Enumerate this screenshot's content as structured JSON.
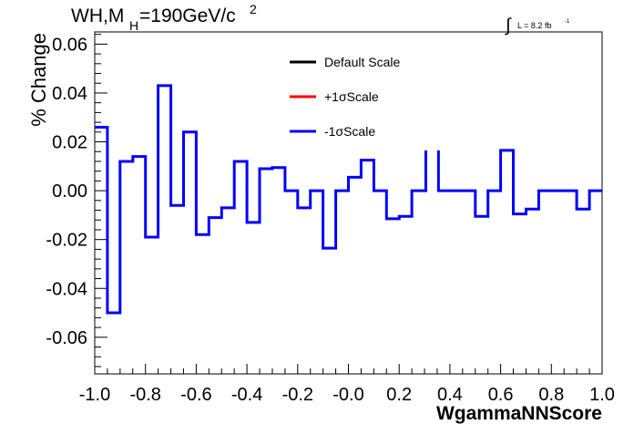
{
  "chart_data": {
    "type": "line",
    "title": {
      "prefix": "WH,M",
      "subscript": "H",
      "middle": "=190GeV/c",
      "superscript": "2"
    },
    "lumi": {
      "integral": "∫",
      "text": "L = 8.2 fb",
      "superscript": "-1"
    },
    "xlabel": "WgammaNNScore",
    "ylabel": "% Change",
    "xlim": [
      -1.0,
      1.0
    ],
    "ylim": [
      -0.075,
      0.065
    ],
    "x_ticks": [
      -1.0,
      -0.8,
      -0.6,
      -0.4,
      -0.2,
      0.0,
      0.2,
      0.4,
      0.6,
      0.8,
      1.0
    ],
    "x_tick_labels": [
      "-1.0",
      "-0.8",
      "-0.6",
      "-0.4",
      "-0.2",
      "-0.0",
      "0.2",
      "0.4",
      "0.6",
      "0.8",
      "1.0"
    ],
    "y_ticks": [
      -0.06,
      -0.04,
      -0.02,
      0.0,
      0.02,
      0.04,
      0.06
    ],
    "y_tick_labels": [
      "-0.06",
      "-0.04",
      "-0.02",
      "0.00",
      "0.02",
      "0.04",
      "0.06"
    ],
    "legend": {
      "placement": "top-center",
      "entries": [
        {
          "label": "Default Scale",
          "color": "#000000"
        },
        {
          "label": "+1σScale",
          "color": "#ff0000"
        },
        {
          "label": "-1σScale",
          "color": "#0000ff"
        }
      ]
    },
    "bin_edges": [
      -1.0,
      -0.95,
      -0.9,
      -0.85,
      -0.8,
      -0.75,
      -0.7,
      -0.65,
      -0.6,
      -0.55,
      -0.5,
      -0.45,
      -0.4,
      -0.35,
      -0.3,
      -0.25,
      -0.2,
      -0.15,
      -0.1,
      -0.05,
      0.0,
      0.05,
      0.1,
      0.15,
      0.2,
      0.25,
      0.3,
      0.35,
      0.4,
      0.45,
      0.5,
      0.55,
      0.6,
      0.65,
      0.7,
      0.75,
      0.8,
      0.85,
      0.9,
      0.95,
      1.0
    ],
    "series": [
      {
        "color": "#0000ff",
        "values": [
          0.026,
          -0.05,
          0.012,
          0.014,
          -0.019,
          0.043,
          -0.006,
          0.024,
          -0.018,
          -0.011,
          -0.007,
          0.012,
          -0.013,
          0.009,
          0.0095,
          0.0,
          -0.007,
          0.0,
          -0.0235,
          0.0,
          0.0055,
          0.0125,
          0.0,
          -0.0115,
          -0.0105,
          0.0,
          0.0,
          0.0,
          0.0,
          0.0,
          -0.0105,
          0.0,
          0.0165,
          -0.0095,
          -0.0075,
          0.0,
          0.0,
          0.0,
          -0.0075,
          0.0
        ],
        "gaps": [
          {
            "from": 0.305,
            "to": 0.355,
            "top": 0.0165
          }
        ]
      }
    ],
    "grid": false
  }
}
